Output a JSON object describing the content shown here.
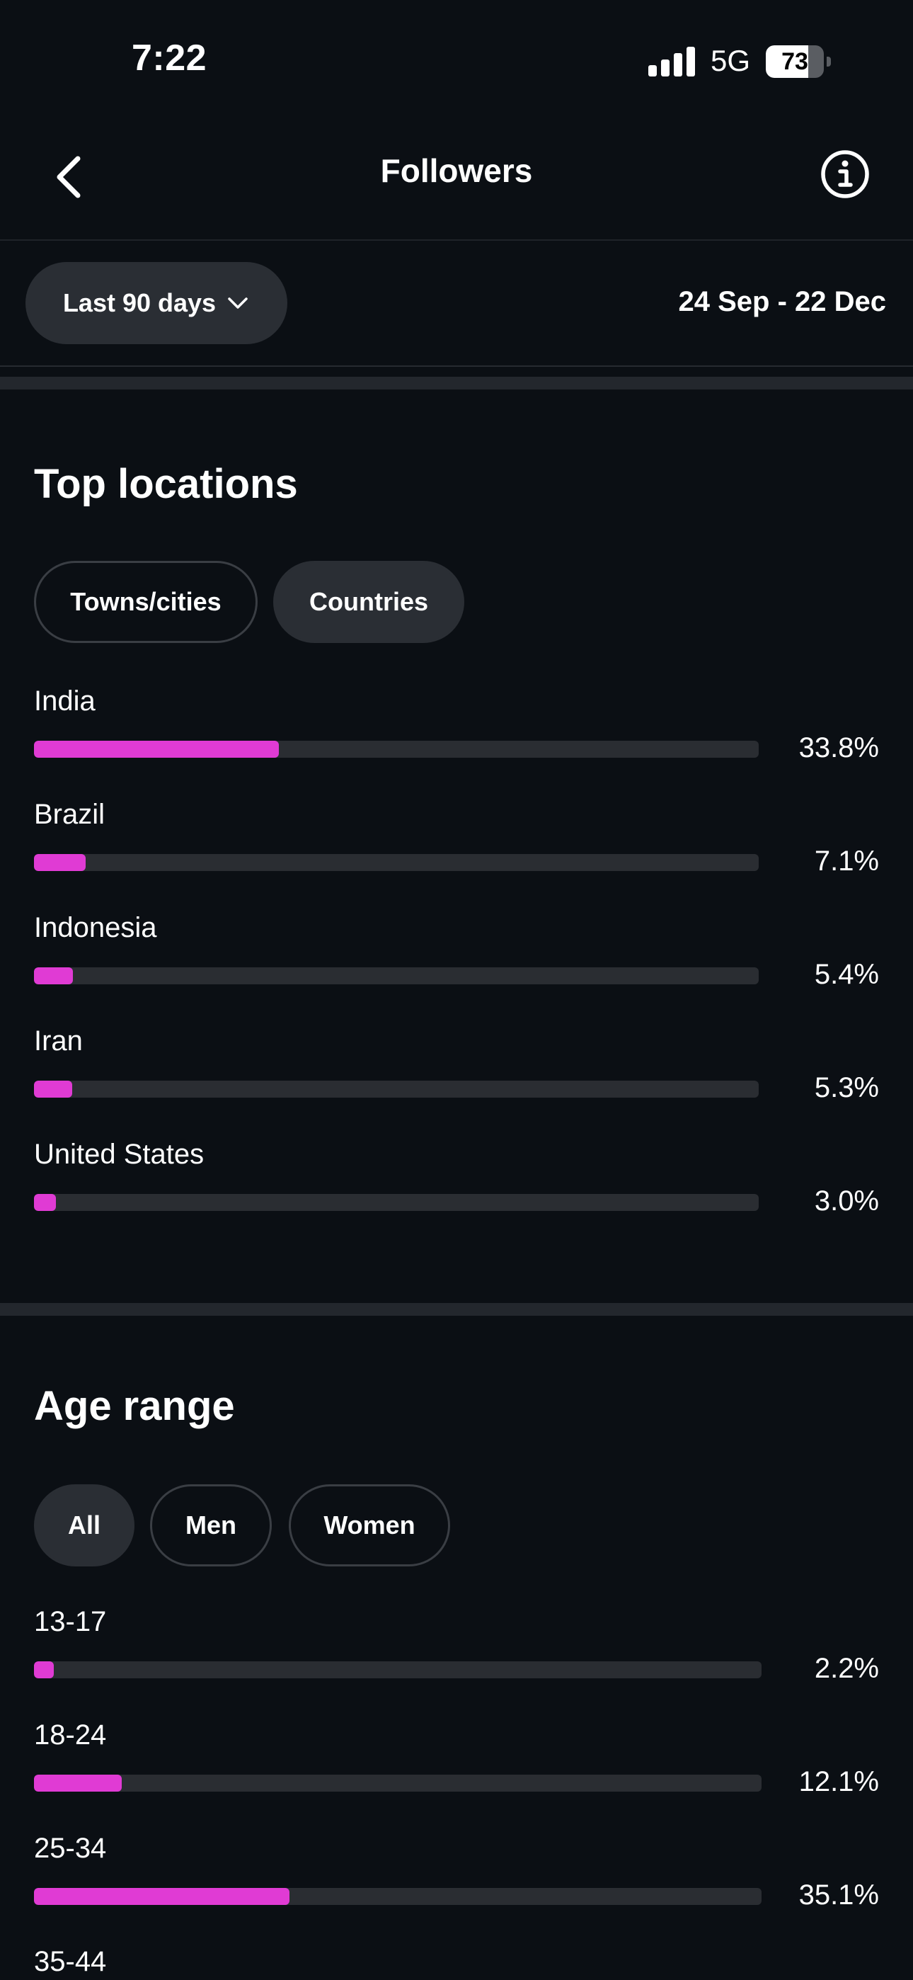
{
  "status_bar": {
    "time": "7:22",
    "network": "5G",
    "battery": "73",
    "battery_level": 0.73
  },
  "header": {
    "title": "Followers",
    "back_icon": "chevron-left-icon",
    "info_icon": "info-circle-icon"
  },
  "filters": {
    "range_label": "Last 90 days",
    "range_icon": "chevron-down-icon",
    "date_range": "24 Sep - 22 Dec"
  },
  "top_locations": {
    "title": "Top locations",
    "tabs": [
      {
        "label": "Towns/cities",
        "active": false
      },
      {
        "label": "Countries",
        "active": true
      }
    ],
    "items": [
      {
        "label": "India",
        "value": "33.8%",
        "fraction": 0.338
      },
      {
        "label": "Brazil",
        "value": "7.1%",
        "fraction": 0.071
      },
      {
        "label": "Indonesia",
        "value": "5.4%",
        "fraction": 0.054
      },
      {
        "label": "Iran",
        "value": "5.3%",
        "fraction": 0.053
      },
      {
        "label": "United States",
        "value": "3.0%",
        "fraction": 0.03
      }
    ]
  },
  "age_range": {
    "title": "Age range",
    "tabs": [
      {
        "label": "All",
        "active": true
      },
      {
        "label": "Men",
        "active": false
      },
      {
        "label": "Women",
        "active": false
      }
    ],
    "items": [
      {
        "label": "13-17",
        "value": "2.2%",
        "fraction": 0.022
      },
      {
        "label": "18-24",
        "value": "12.1%",
        "fraction": 0.121
      },
      {
        "label": "25-34",
        "value": "35.1%",
        "fraction": 0.351
      },
      {
        "label": "35-44",
        "value": "",
        "fraction": null
      }
    ]
  },
  "colors": {
    "background": "#0b0f14",
    "bar_fill": "#e03bd4",
    "bar_track": "#2a2d32",
    "chip_active": "#2a2e34"
  }
}
